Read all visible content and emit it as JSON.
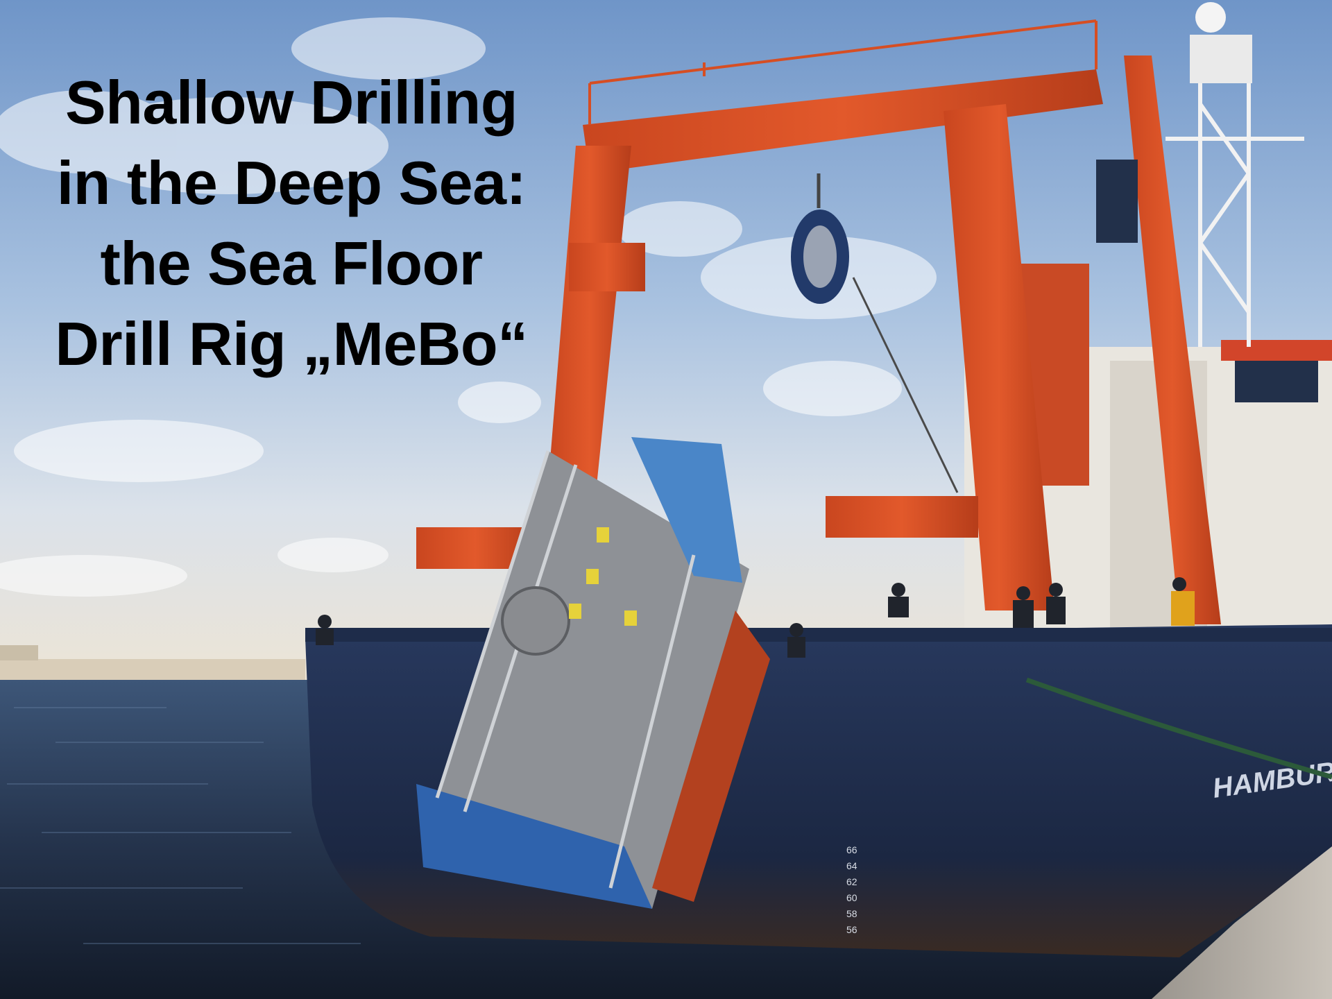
{
  "title": {
    "lines": [
      "Shallow Drilling",
      "in the Deep Sea:",
      "the Sea Floor",
      "Drill Rig „MeBo“"
    ]
  },
  "photo": {
    "hull_text": "HAMBURG",
    "draft_marks": [
      "66",
      "64",
      "62",
      "60",
      "58",
      "56"
    ]
  }
}
